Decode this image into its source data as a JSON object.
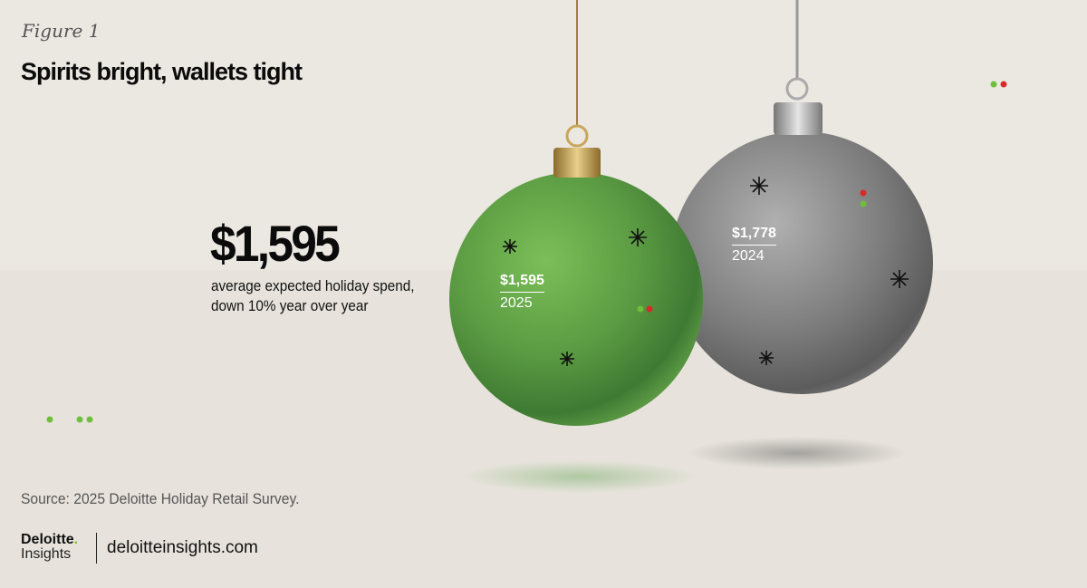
{
  "figure_label": "Figure 1",
  "title": "Spirits bright, wallets tight",
  "headline": {
    "value": "$1,595",
    "description_line1": "average expected holiday spend,",
    "description_line2": "down 10% year over year"
  },
  "source": "Source: 2025 Deloitte Holiday Retail Survey.",
  "logo": {
    "brand": "Deloitte",
    "sub": "Insights"
  },
  "site": "deloitteinsights.com",
  "colors": {
    "green_ornament": "#5fa046",
    "gray_ornament": "#8a8a8a",
    "accent_green": "#6fbf3c",
    "accent_red": "#d92a2a",
    "background": "#ebe7e1"
  },
  "chart_data": {
    "type": "pictorial",
    "categories": [
      "2025",
      "2024"
    ],
    "values": [
      1595,
      1778
    ],
    "labels": [
      "$1,595",
      "$1,778"
    ]
  }
}
